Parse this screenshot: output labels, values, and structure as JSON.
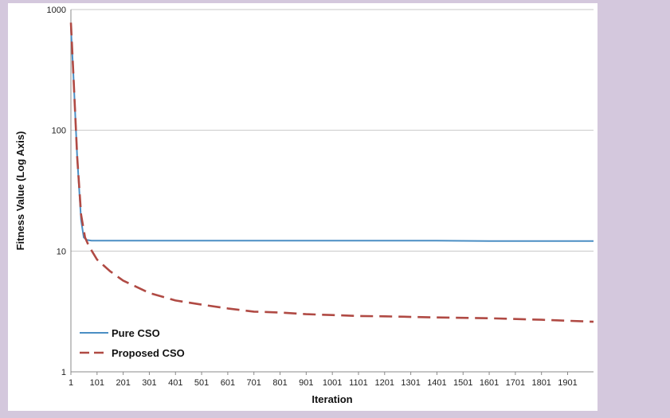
{
  "chart_data": {
    "type": "line",
    "title": "",
    "xlabel": "Iteration",
    "ylabel": "Fitness Value (Log Axis)",
    "y_scale": "log",
    "ylim": [
      1,
      1000
    ],
    "xlim": [
      1,
      2000
    ],
    "grid": "horizontal",
    "legend_position": "bottom-left",
    "x_tick_labels": [
      "1",
      "101",
      "201",
      "301",
      "401",
      "501",
      "601",
      "701",
      "801",
      "901",
      "1001",
      "1101",
      "1201",
      "1301",
      "1401",
      "1501",
      "1601",
      "1701",
      "1801",
      "1901"
    ],
    "y_tick_labels": [
      "1",
      "10",
      "100",
      "1000"
    ],
    "y_ticks": [
      1,
      10,
      100,
      1000
    ],
    "series": [
      {
        "name": "Pure CSO",
        "color": "#4a8ec4",
        "dash": "solid",
        "x": [
          1,
          10,
          25,
          40,
          50,
          60,
          80,
          101,
          201,
          401,
          601,
          801,
          1001,
          1201,
          1401,
          1601,
          1801,
          2000
        ],
        "y": [
          700,
          300,
          60,
          18,
          13,
          12.4,
          12.2,
          12.2,
          12.2,
          12.2,
          12.2,
          12.2,
          12.2,
          12.2,
          12.2,
          12.1,
          12.1,
          12.1
        ]
      },
      {
        "name": "Proposed CSO",
        "color": "#b04a44",
        "dash": "dashed",
        "x": [
          1,
          10,
          25,
          40,
          55,
          70,
          101,
          151,
          201,
          301,
          401,
          501,
          601,
          701,
          801,
          901,
          1001,
          1101,
          1201,
          1401,
          1601,
          1801,
          2000
        ],
        "y": [
          780,
          300,
          60,
          20,
          13,
          11,
          8.5,
          6.8,
          5.7,
          4.5,
          3.9,
          3.6,
          3.35,
          3.15,
          3.1,
          3.0,
          2.95,
          2.9,
          2.88,
          2.82,
          2.78,
          2.7,
          2.6
        ]
      }
    ]
  }
}
